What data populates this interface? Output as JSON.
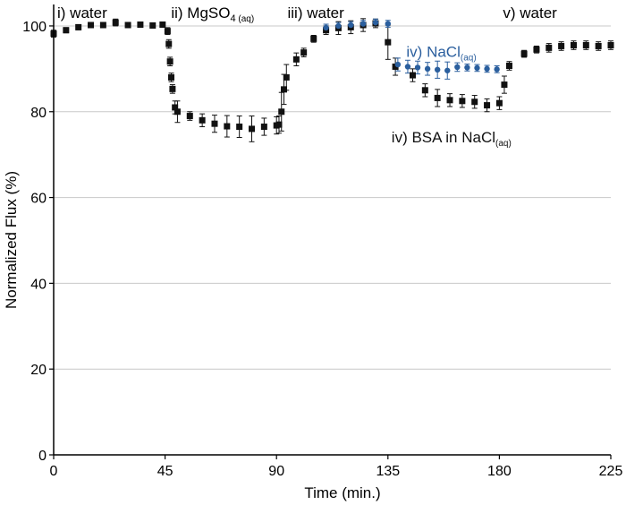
{
  "chart_data": {
    "type": "scatter",
    "xlabel": "Time (min.)",
    "ylabel": "Normalized Flux (%)",
    "xlim": [
      0,
      225
    ],
    "ylim": [
      0,
      105
    ],
    "xticks": [
      "0",
      "45",
      "90",
      "135",
      "180",
      "225"
    ],
    "yticks": [
      "0",
      "20",
      "40",
      "60",
      "80",
      "100"
    ],
    "grid": "horizontal",
    "colors": {
      "black_series": "#111111",
      "blue_series": "#2b5f9e",
      "grid": "#c8c8c8"
    },
    "phase_labels": [
      {
        "main": "i) water",
        "sub": "",
        "x": 0,
        "y": 103.5
      },
      {
        "main": "ii) MgSO",
        "sub4": "4",
        "sub": " (aq)",
        "x": 46,
        "y": 103.5
      },
      {
        "main": "iii) water",
        "sub": "",
        "x": 93,
        "y": 103.5
      },
      {
        "main": "v) water",
        "sub": "",
        "x": 180,
        "y": 103.5
      }
    ],
    "series_labels": [
      {
        "main": "iv) NaCl",
        "sub": "(aq)",
        "x": 141,
        "y": 94.5,
        "color": "blue"
      },
      {
        "main": "iv) BSA in NaCl",
        "sub": "(aq)",
        "x": 135,
        "y": 74.5,
        "color": "black"
      }
    ],
    "series": [
      {
        "label": "BSA in NaCl (aq)",
        "marker": "square",
        "color": "black",
        "points": [
          [
            0,
            98.2,
            0.8
          ],
          [
            5,
            99.0,
            0.6
          ],
          [
            10,
            99.7,
            0.6
          ],
          [
            15,
            100.2,
            0.6
          ],
          [
            20,
            100.2,
            0.5
          ],
          [
            25,
            100.8,
            0.8
          ],
          [
            30,
            100.2,
            0.5
          ],
          [
            35,
            100.3,
            0.5
          ],
          [
            40,
            100.1,
            0.5
          ],
          [
            44,
            100.3,
            0.6
          ],
          [
            46,
            98.8,
            0.8
          ],
          [
            46.5,
            95.8,
            1.0
          ],
          [
            47,
            91.7,
            1.0
          ],
          [
            47.5,
            88.0,
            1.0
          ],
          [
            48,
            85.3,
            1.0
          ],
          [
            49,
            81.0,
            1.5
          ],
          [
            50,
            80.0,
            2.5
          ],
          [
            55,
            79.0,
            1.0
          ],
          [
            60,
            78.0,
            1.5
          ],
          [
            65,
            77.2,
            2.0
          ],
          [
            70,
            76.6,
            2.5
          ],
          [
            75,
            76.5,
            2.5
          ],
          [
            80,
            76.0,
            3.0
          ],
          [
            85,
            76.5,
            2.0
          ],
          [
            90,
            76.8,
            2.0
          ],
          [
            91,
            77.0,
            2.0
          ],
          [
            92,
            80.0,
            4.5
          ],
          [
            93,
            85.2,
            3.5
          ],
          [
            94,
            88.0,
            3.0
          ],
          [
            98,
            92.2,
            1.5
          ],
          [
            101,
            93.8,
            1.0
          ],
          [
            105,
            97.0,
            0.8
          ],
          [
            110,
            99.0,
            1.0
          ],
          [
            115,
            99.5,
            1.5
          ],
          [
            120,
            99.7,
            1.5
          ],
          [
            125,
            100.2,
            1.5
          ],
          [
            130,
            100.6,
            1.0
          ],
          [
            135,
            96.2,
            4.0
          ],
          [
            138,
            90.5,
            2.0
          ],
          [
            145,
            88.5,
            1.5
          ],
          [
            150,
            85.0,
            1.5
          ],
          [
            155,
            83.2,
            2.0
          ],
          [
            160,
            82.7,
            1.5
          ],
          [
            165,
            82.5,
            1.5
          ],
          [
            170,
            82.3,
            1.5
          ],
          [
            175,
            81.5,
            1.5
          ],
          [
            180,
            82.0,
            1.5
          ],
          [
            182,
            86.3,
            2.0
          ],
          [
            184,
            90.7,
            1.0
          ],
          [
            190,
            93.5,
            0.8
          ],
          [
            195,
            94.5,
            0.8
          ],
          [
            200,
            94.9,
            1.0
          ],
          [
            205,
            95.3,
            1.0
          ],
          [
            210,
            95.5,
            1.0
          ],
          [
            215,
            95.5,
            1.0
          ],
          [
            220,
            95.3,
            1.0
          ],
          [
            225,
            95.5,
            1.0
          ]
        ]
      },
      {
        "label": "NaCl (aq)",
        "marker": "circle",
        "color": "blue",
        "points": [
          [
            110,
            99.6,
            0.8
          ],
          [
            115,
            100.0,
            0.8
          ],
          [
            120,
            100.2,
            0.8
          ],
          [
            125,
            100.5,
            0.8
          ],
          [
            130,
            100.8,
            0.8
          ],
          [
            135,
            100.5,
            0.8
          ],
          [
            139,
            91.0,
            1.5
          ],
          [
            143,
            90.5,
            1.5
          ],
          [
            147,
            90.3,
            1.5
          ],
          [
            151,
            90.0,
            1.5
          ],
          [
            155,
            89.8,
            2.0
          ],
          [
            159,
            89.6,
            2.0
          ],
          [
            163,
            90.4,
            1.0
          ],
          [
            167,
            90.3,
            0.8
          ],
          [
            171,
            90.2,
            0.8
          ],
          [
            175,
            90.0,
            0.8
          ],
          [
            179,
            89.9,
            0.8
          ]
        ]
      }
    ]
  }
}
